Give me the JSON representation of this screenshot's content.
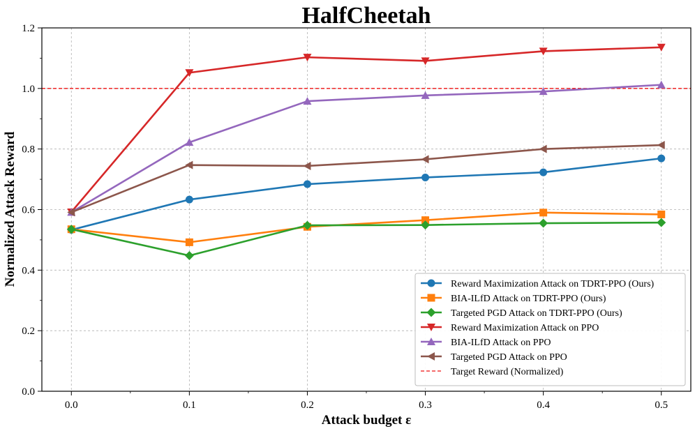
{
  "chart_data": {
    "type": "line",
    "title": "HalfCheetah",
    "xlabel": "Attack budget ε",
    "ylabel": "Normalized Attack Reward",
    "x": [
      0.0,
      0.1,
      0.2,
      0.3,
      0.4,
      0.5
    ],
    "xlim": [
      -0.025,
      0.525
    ],
    "ylim": [
      0.0,
      1.2
    ],
    "xticks": [
      "0.0",
      "0.1",
      "0.2",
      "0.3",
      "0.4",
      "0.5"
    ],
    "yticks": [
      "0.0",
      "0.2",
      "0.4",
      "0.6",
      "0.8",
      "1.0",
      "1.2"
    ],
    "grid": true,
    "legend_position": "lower-right",
    "series": [
      {
        "name": "Reward Maximization Attack on TDRT-PPO (Ours)",
        "color": "#1f77b4",
        "marker": "circle",
        "values": [
          0.533,
          0.633,
          0.684,
          0.706,
          0.723,
          0.769
        ]
      },
      {
        "name": "BIA-ILfD Attack on TDRT-PPO (Ours)",
        "color": "#ff7f0e",
        "marker": "square",
        "values": [
          0.535,
          0.492,
          0.543,
          0.565,
          0.59,
          0.584
        ]
      },
      {
        "name": "Targeted PGD Attack on TDRT-PPO (Ours)",
        "color": "#2ca02c",
        "marker": "diamond",
        "values": [
          0.535,
          0.448,
          0.548,
          0.549,
          0.555,
          0.557
        ]
      },
      {
        "name": "Reward Maximization Attack on PPO",
        "color": "#d62728",
        "marker": "triangle-down",
        "values": [
          0.592,
          1.052,
          1.103,
          1.091,
          1.123,
          1.136
        ]
      },
      {
        "name": "BIA-ILfD Attack on PPO",
        "color": "#9467bd",
        "marker": "triangle-up",
        "values": [
          0.591,
          0.822,
          0.958,
          0.977,
          0.99,
          1.012
        ]
      },
      {
        "name": "Targeted PGD Attack on PPO",
        "color": "#8c564b",
        "marker": "triangle-left",
        "values": [
          0.591,
          0.747,
          0.744,
          0.766,
          0.8,
          0.813
        ]
      }
    ],
    "reference_line": {
      "name": "Target Reward (Normalized)",
      "y": 1.0,
      "color": "#ee1111",
      "style": "dashed"
    }
  }
}
